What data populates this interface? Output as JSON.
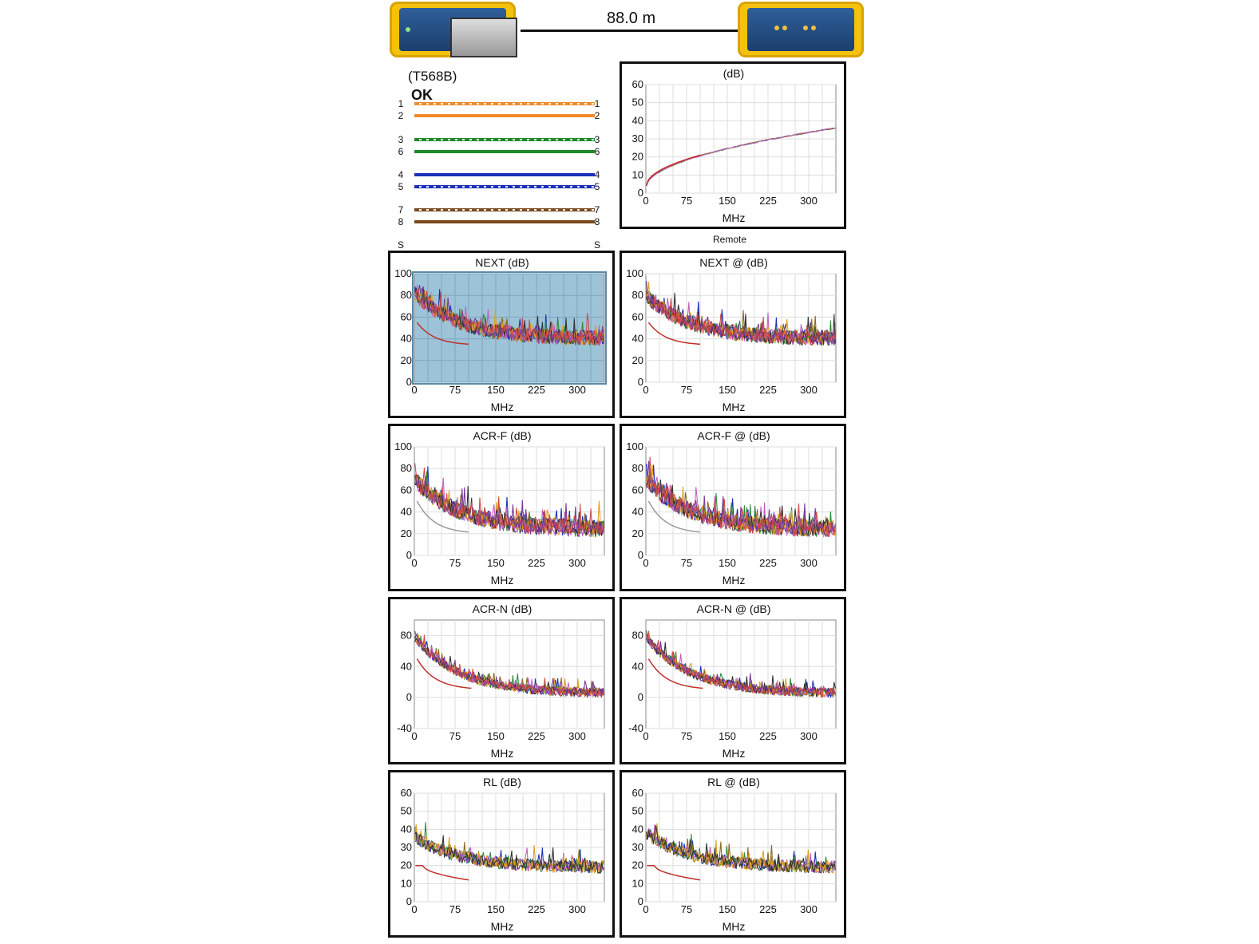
{
  "header": {
    "cable_length": "88.0 m",
    "remote_label": "Remote"
  },
  "wiremap": {
    "standard": "(T568B)",
    "status": "OK",
    "shield_left": "S",
    "shield_right": "S",
    "wires": [
      {
        "pin": "1",
        "color": "#f08a2a",
        "striped": true
      },
      {
        "pin": "2",
        "color": "#f08a2a",
        "striped": false
      },
      {
        "pin": "3",
        "color": "#1f8a2a",
        "striped": true
      },
      {
        "pin": "6",
        "color": "#1f8a2a",
        "striped": false
      },
      {
        "pin": "4",
        "color": "#1a2fb8",
        "striped": false
      },
      {
        "pin": "5",
        "color": "#1a2fb8",
        "striped": true
      },
      {
        "pin": "7",
        "color": "#7a4a1e",
        "striped": true
      },
      {
        "pin": "8",
        "color": "#7a4a1e",
        "striped": false
      }
    ]
  },
  "colors": {
    "pair_colors": [
      "#1a2fb8",
      "#2e8b3a",
      "#8b6a1e",
      "#c060c0",
      "#e0a020",
      "#333333",
      "#7a3a9a",
      "#d04a4a"
    ],
    "limit_line": "#c0302a",
    "limit_line_alt": "#999999",
    "selected_background": "#9dc3d8"
  },
  "chart_data": [
    {
      "id": "insertion-loss",
      "type": "line",
      "title": "(dB)",
      "xlabel": "MHz",
      "xlim": [
        0,
        350
      ],
      "ylim": [
        0,
        60
      ],
      "xticks": [
        "0",
        "75",
        "150",
        "225",
        "300"
      ],
      "yticks": [
        "0",
        "10",
        "20",
        "30",
        "40",
        "50",
        "60"
      ],
      "pattern": "sqrt",
      "params": {
        "start": 3,
        "end": 36,
        "noise": 0.6
      },
      "limit": {
        "x0": 1,
        "x1": 100,
        "y0": 4,
        "y1": 21,
        "shape": "sqrt"
      },
      "selected": false
    },
    {
      "id": "next",
      "type": "line",
      "title": "NEXT (dB)",
      "xlabel": "MHz",
      "xlim": [
        0,
        350
      ],
      "ylim": [
        0,
        100
      ],
      "xticks": [
        "0",
        "75",
        "150",
        "225",
        "300"
      ],
      "yticks": [
        "0",
        "20",
        "40",
        "60",
        "80",
        "100"
      ],
      "pattern": "decay",
      "params": {
        "start": 82,
        "end": 40,
        "noise": 14
      },
      "limit": {
        "x0": 5,
        "x1": 100,
        "y0": 55,
        "y1": 34,
        "shape": "decay"
      },
      "selected": true
    },
    {
      "id": "next-remote",
      "type": "line",
      "title": "NEXT @  (dB)",
      "xlabel": "MHz",
      "xlim": [
        0,
        350
      ],
      "ylim": [
        0,
        100
      ],
      "xticks": [
        "0",
        "75",
        "150",
        "225",
        "300"
      ],
      "yticks": [
        "0",
        "20",
        "40",
        "60",
        "80",
        "100"
      ],
      "pattern": "decay",
      "params": {
        "start": 80,
        "end": 40,
        "noise": 14
      },
      "limit": {
        "x0": 5,
        "x1": 100,
        "y0": 55,
        "y1": 34,
        "shape": "decay"
      },
      "selected": false
    },
    {
      "id": "acr-f",
      "type": "line",
      "title": "ACR-F (dB)",
      "xlabel": "MHz",
      "xlim": [
        0,
        350
      ],
      "ylim": [
        0,
        100
      ],
      "xticks": [
        "0",
        "75",
        "150",
        "225",
        "300"
      ],
      "yticks": [
        "0",
        "20",
        "40",
        "60",
        "80",
        "100"
      ],
      "pattern": "decay",
      "params": {
        "start": 70,
        "end": 24,
        "noise": 16
      },
      "limit": {
        "x0": 5,
        "x1": 100,
        "y0": 50,
        "y1": 20,
        "shape": "decay"
      },
      "limit_alt": true,
      "selected": false
    },
    {
      "id": "acr-f-remote",
      "type": "line",
      "title": "ACR-F @  (dB)",
      "xlabel": "MHz",
      "xlim": [
        0,
        350
      ],
      "ylim": [
        0,
        100
      ],
      "xticks": [
        "0",
        "75",
        "150",
        "225",
        "300"
      ],
      "yticks": [
        "0",
        "20",
        "40",
        "60",
        "80",
        "100"
      ],
      "pattern": "decay",
      "params": {
        "start": 70,
        "end": 24,
        "noise": 16
      },
      "limit": {
        "x0": 5,
        "x1": 100,
        "y0": 50,
        "y1": 20,
        "shape": "decay"
      },
      "limit_alt": true,
      "selected": false
    },
    {
      "id": "acr-n",
      "type": "line",
      "title": "ACR-N (dB)",
      "xlabel": "MHz",
      "xlim": [
        0,
        350
      ],
      "ylim": [
        -40,
        100
      ],
      "xticks": [
        "0",
        "75",
        "150",
        "225",
        "300"
      ],
      "yticks": [
        "-40",
        "0",
        "40",
        "80"
      ],
      "pattern": "decay",
      "params": {
        "start": 78,
        "end": 5,
        "noise": 12
      },
      "limit": {
        "x0": 5,
        "x1": 105,
        "y0": 50,
        "y1": 10,
        "shape": "decay"
      },
      "selected": false
    },
    {
      "id": "acr-n-remote",
      "type": "line",
      "title": "ACR-N @  (dB)",
      "xlabel": "MHz",
      "xlim": [
        0,
        350
      ],
      "ylim": [
        -40,
        100
      ],
      "xticks": [
        "0",
        "75",
        "150",
        "225",
        "300"
      ],
      "yticks": [
        "-40",
        "0",
        "40",
        "80"
      ],
      "pattern": "decay",
      "params": {
        "start": 78,
        "end": 5,
        "noise": 12
      },
      "limit": {
        "x0": 5,
        "x1": 105,
        "y0": 50,
        "y1": 10,
        "shape": "decay"
      },
      "selected": false
    },
    {
      "id": "rl",
      "type": "line",
      "title": "RL (dB)",
      "xlabel": "MHz",
      "xlim": [
        0,
        350
      ],
      "ylim": [
        0,
        60
      ],
      "xticks": [
        "0",
        "75",
        "150",
        "225",
        "300"
      ],
      "yticks": [
        "0",
        "10",
        "20",
        "30",
        "40",
        "50",
        "60"
      ],
      "pattern": "rl",
      "params": {
        "start": 36,
        "end": 19,
        "noise": 7
      },
      "limit": {
        "x0": 2,
        "x1": 100,
        "y0": 20,
        "y1": 12,
        "shape": "rl"
      },
      "selected": false
    },
    {
      "id": "rl-remote",
      "type": "line",
      "title": "RL @  (dB)",
      "xlabel": "MHz",
      "xlim": [
        0,
        350
      ],
      "ylim": [
        0,
        60
      ],
      "xticks": [
        "0",
        "75",
        "150",
        "225",
        "300"
      ],
      "yticks": [
        "0",
        "10",
        "20",
        "30",
        "40",
        "50",
        "60"
      ],
      "pattern": "rl",
      "params": {
        "start": 38,
        "end": 19,
        "noise": 7
      },
      "limit": {
        "x0": 2,
        "x1": 100,
        "y0": 20,
        "y1": 12,
        "shape": "rl"
      },
      "selected": false
    }
  ]
}
